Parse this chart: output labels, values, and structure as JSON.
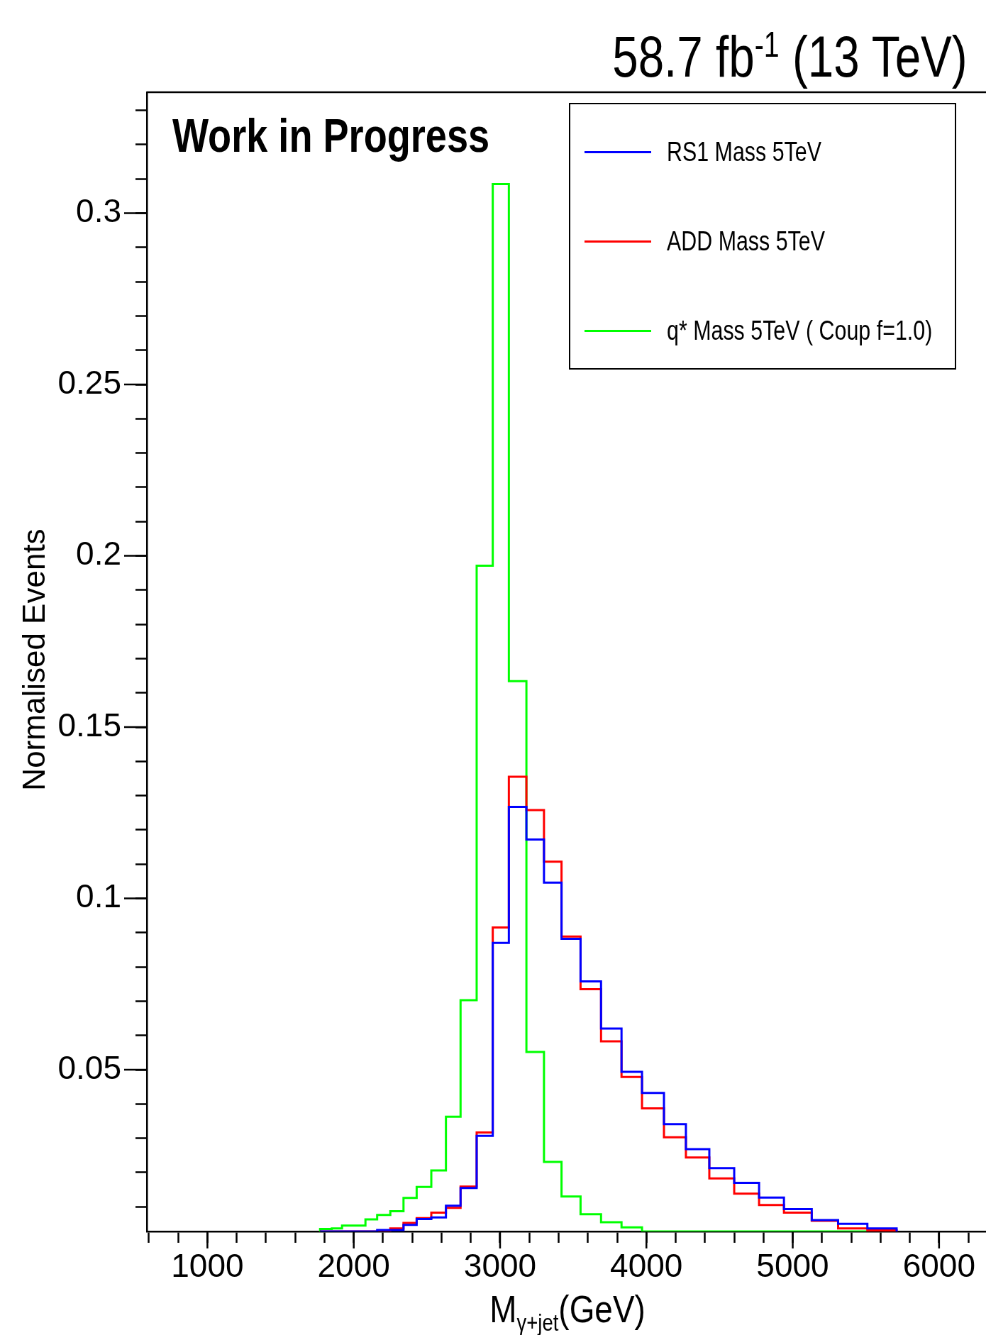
{
  "chart_data": {
    "type": "histogram",
    "title": "58.7 fb$^{-1}$ (13 TeV)",
    "xlabel": "M$_{γ+jet}$(GeV)",
    "ylabel": "Normalised Events",
    "annotations": [
      "Work in Progress"
    ],
    "bins": [
      1770,
      1850,
      1920,
      2000,
      2080,
      2160,
      2250,
      2340,
      2430,
      2530,
      2630,
      2730,
      2840,
      2950,
      3060,
      3180,
      3300,
      3420,
      3550,
      3690,
      3830,
      3970,
      4120,
      4270,
      4430,
      4600,
      4770,
      4940,
      5130,
      5310,
      5510,
      5710
    ],
    "series": [
      {
        "name": "RS1 Mass 5TeV",
        "color": "#0000ff",
        "values": [
          null,
          null,
          null,
          null,
          null,
          0.0032,
          0.0032,
          0.0047,
          0.0064,
          0.0069,
          0.0103,
          0.0155,
          0.0307,
          0.087,
          0.1267,
          0.1172,
          0.1046,
          0.0882,
          0.0758,
          0.062,
          0.0494,
          0.0432,
          0.0341,
          0.0268,
          0.0213,
          0.017,
          0.0127,
          0.0093,
          0.0061,
          0.005,
          0.0037
        ]
      },
      {
        "name": "ADD Mass 5TeV",
        "color": "#ff0000",
        "values": [
          null,
          null,
          null,
          null,
          null,
          null,
          0.0037,
          0.0053,
          0.0067,
          0.0083,
          0.0097,
          0.0159,
          0.0317,
          0.0915,
          0.1355,
          0.1258,
          0.1107,
          0.0889,
          0.0735,
          0.0583,
          0.0479,
          0.0387,
          0.0303,
          0.0244,
          0.0183,
          0.0138,
          0.0105,
          0.0083,
          0.0059,
          0.0037,
          0.0031
        ]
      },
      {
        "name": "q* Mass 5TeV ( Coup f=1.0)",
        "color": "#00ff00",
        "values": [
          0.0035,
          0.0037,
          0.0045,
          0.0045,
          0.0063,
          0.0076,
          0.0087,
          0.0126,
          0.0158,
          0.0206,
          0.0363,
          0.0703,
          0.1971,
          0.3085,
          0.1634,
          0.0552,
          0.0231,
          0.013,
          0.0078,
          0.0055,
          0.004,
          null,
          null,
          null,
          null,
          null,
          null,
          null,
          null,
          null,
          null
        ]
      }
    ],
    "xlim": [
      586,
      6345
    ],
    "ylim": [
      0.0028,
      0.3353
    ],
    "xticks": [
      {
        "value": 600,
        "label": null
      },
      {
        "value": 800,
        "label": null
      },
      1000,
      {
        "value": 1200,
        "label": null
      },
      {
        "value": 1400,
        "label": null
      },
      {
        "value": 1600,
        "label": null
      },
      {
        "value": 1800,
        "label": null
      },
      2000,
      {
        "value": 2200,
        "label": null
      },
      {
        "value": 2400,
        "label": null
      },
      {
        "value": 2600,
        "label": null
      },
      {
        "value": 2800,
        "label": null
      },
      3000,
      {
        "value": 3200,
        "label": null
      },
      {
        "value": 3400,
        "label": null
      },
      {
        "value": 3600,
        "label": null
      },
      {
        "value": 3800,
        "label": null
      },
      4000,
      {
        "value": 4200,
        "label": null
      },
      {
        "value": 4400,
        "label": null
      },
      {
        "value": 4600,
        "label": null
      },
      {
        "value": 4800,
        "label": null
      },
      5000,
      {
        "value": 5200,
        "label": null
      },
      {
        "value": 5400,
        "label": null
      },
      {
        "value": 5600,
        "label": null
      },
      {
        "value": 5800,
        "label": null
      },
      6000,
      {
        "value": 6200,
        "label": null
      }
    ],
    "yticks": [
      {
        "value": 0.01,
        "label": null
      },
      {
        "value": 0.02,
        "label": null
      },
      {
        "value": 0.03,
        "label": null
      },
      {
        "value": 0.04,
        "label": null
      },
      0.05,
      {
        "value": 0.06,
        "label": null
      },
      {
        "value": 0.07,
        "label": null
      },
      {
        "value": 0.08,
        "label": null
      },
      {
        "value": 0.09,
        "label": null
      },
      0.1,
      {
        "value": 0.11,
        "label": null
      },
      {
        "value": 0.12,
        "label": null
      },
      {
        "value": 0.13,
        "label": null
      },
      {
        "value": 0.14,
        "label": null
      },
      0.15,
      {
        "value": 0.16,
        "label": null
      },
      {
        "value": 0.17,
        "label": null
      },
      {
        "value": 0.18,
        "label": null
      },
      {
        "value": 0.19,
        "label": null
      },
      0.2,
      {
        "value": 0.21,
        "label": null
      },
      {
        "value": 0.22,
        "label": null
      },
      {
        "value": 0.23,
        "label": null
      },
      {
        "value": 0.24,
        "label": null
      },
      0.25,
      {
        "value": 0.26,
        "label": null
      },
      {
        "value": 0.27,
        "label": null
      },
      {
        "value": 0.28,
        "label": null
      },
      {
        "value": 0.29,
        "label": null
      },
      0.3,
      {
        "value": 0.31,
        "label": null
      },
      {
        "value": 0.32,
        "label": null
      },
      {
        "value": 0.33,
        "label": null
      }
    ],
    "legend": "top right"
  }
}
